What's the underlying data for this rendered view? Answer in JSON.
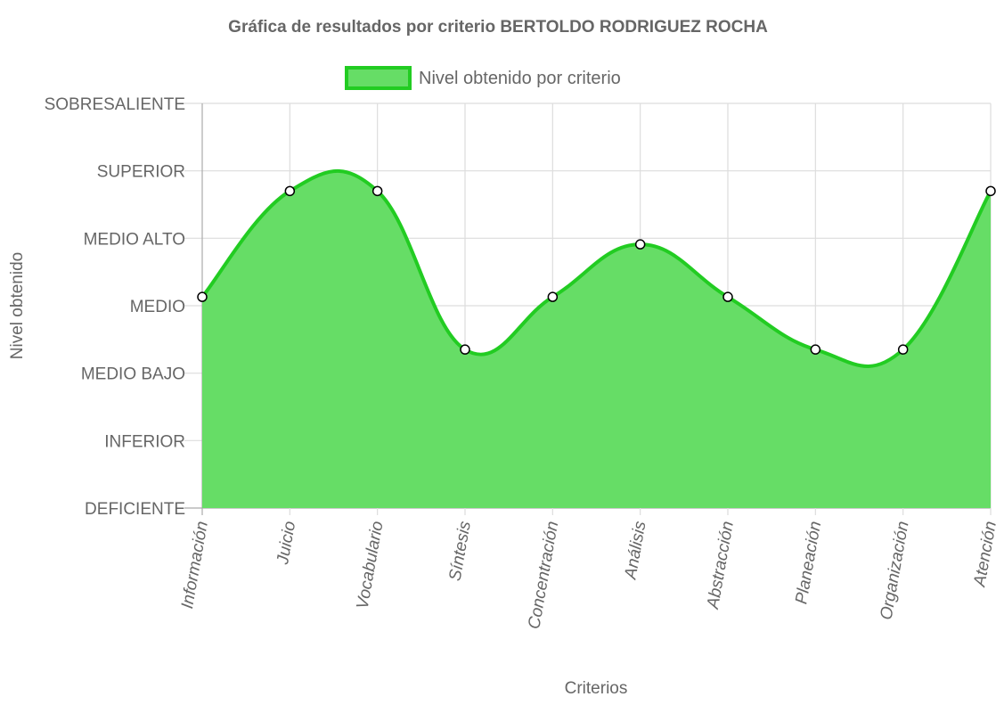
{
  "chart_data": {
    "type": "area",
    "title": "Gráfica de resultados por criterio BERTOLDO RODRIGUEZ ROCHA",
    "xlabel": "Criterios",
    "ylabel": "Nivel obtenido",
    "y_levels": [
      "DEFICIENTE",
      "INFERIOR",
      "MEDIO BAJO",
      "MEDIO",
      "MEDIO ALTO",
      "SUPERIOR",
      "SOBRESALIENTE"
    ],
    "ylim": [
      0,
      6
    ],
    "categories": [
      "Información",
      "Juicio",
      "Vocabulario",
      "Síntesis",
      "Concentración",
      "Análisis",
      "Abstracción",
      "Planeación",
      "Organización",
      "Atención"
    ],
    "series": [
      {
        "name": "Nivel obtenido por criterio",
        "values": [
          3.13,
          4.7,
          4.7,
          2.35,
          3.13,
          3.91,
          3.13,
          2.35,
          2.35,
          4.7
        ],
        "line_color": "#22cc22",
        "fill_color": "#66dd66"
      }
    ],
    "grid": true,
    "legend_position": "top-center"
  }
}
